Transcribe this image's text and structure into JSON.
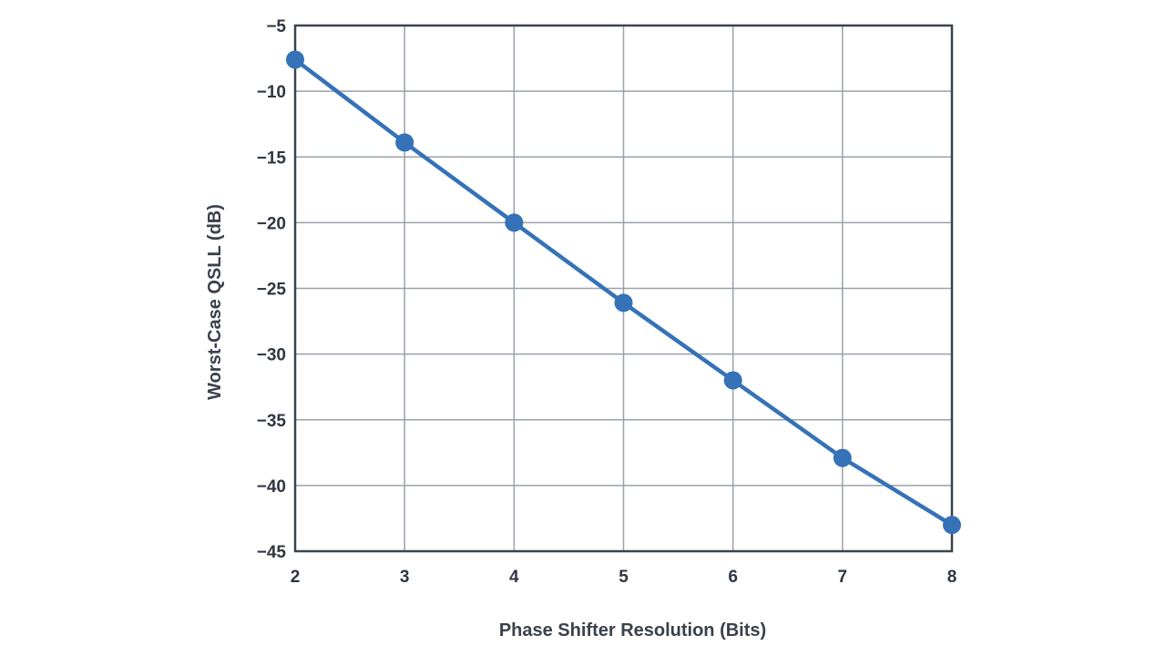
{
  "chart_data": {
    "type": "line",
    "title": "",
    "xlabel": "Phase Shifter Resolution (Bits)",
    "ylabel": "Worst-Case QSLL (dB)",
    "x": [
      2,
      3,
      4,
      5,
      6,
      7,
      8
    ],
    "xlim": [
      2,
      8
    ],
    "ylim": [
      -45,
      -5
    ],
    "xticks": [
      2,
      3,
      4,
      5,
      6,
      7,
      8
    ],
    "xtick_labels": [
      "2",
      "3",
      "4",
      "5",
      "6",
      "7",
      "8"
    ],
    "yticks": [
      -5,
      -10,
      -15,
      -20,
      -25,
      -30,
      -35,
      -40,
      -45
    ],
    "ytick_labels": [
      "−5",
      "−10",
      "−15",
      "−20",
      "−25",
      "−30",
      "−35",
      "−40",
      "−45"
    ],
    "grid": true,
    "series": [
      {
        "color": "#3572b7",
        "values": [
          -7.6,
          -13.9,
          -20.0,
          -26.1,
          -32.0,
          -37.9,
          -43.0
        ]
      }
    ]
  }
}
